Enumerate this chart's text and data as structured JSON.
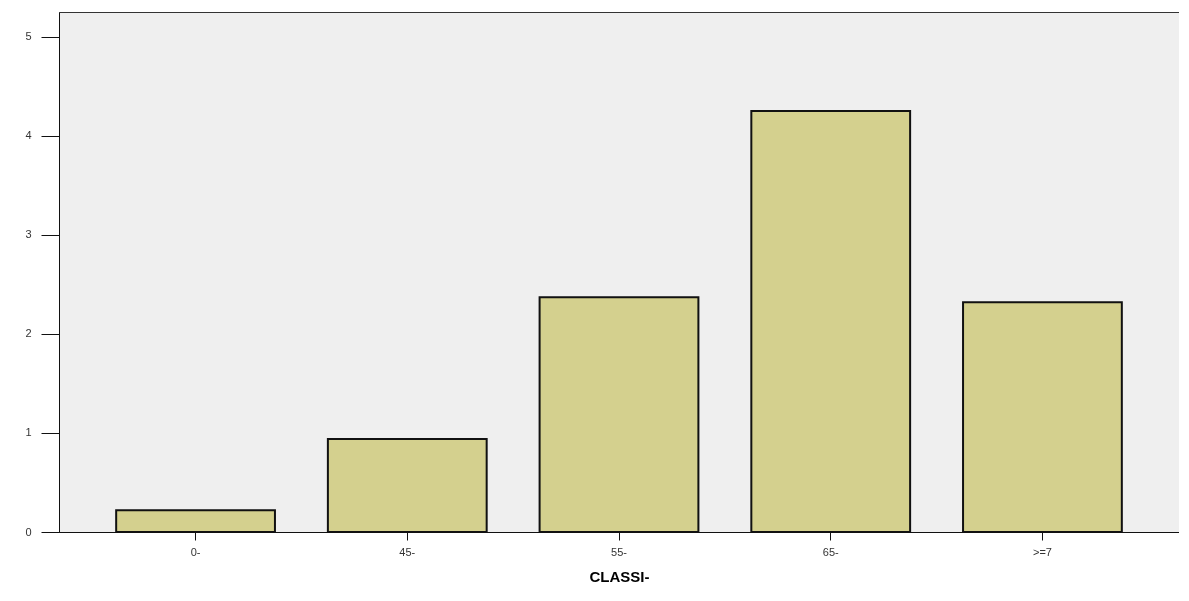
{
  "chart_data": {
    "type": "bar",
    "xlabel": "CLASSI-",
    "categories": [
      "0-",
      "45-",
      "55-",
      "65-",
      ">=7"
    ],
    "values": [
      0.22,
      0.94,
      2.37,
      4.25,
      2.32
    ],
    "color": "#d4d08e",
    "ylim": [
      0,
      5.25
    ],
    "yticks": [
      0,
      1,
      2,
      3,
      4,
      5
    ],
    "grid": false
  }
}
